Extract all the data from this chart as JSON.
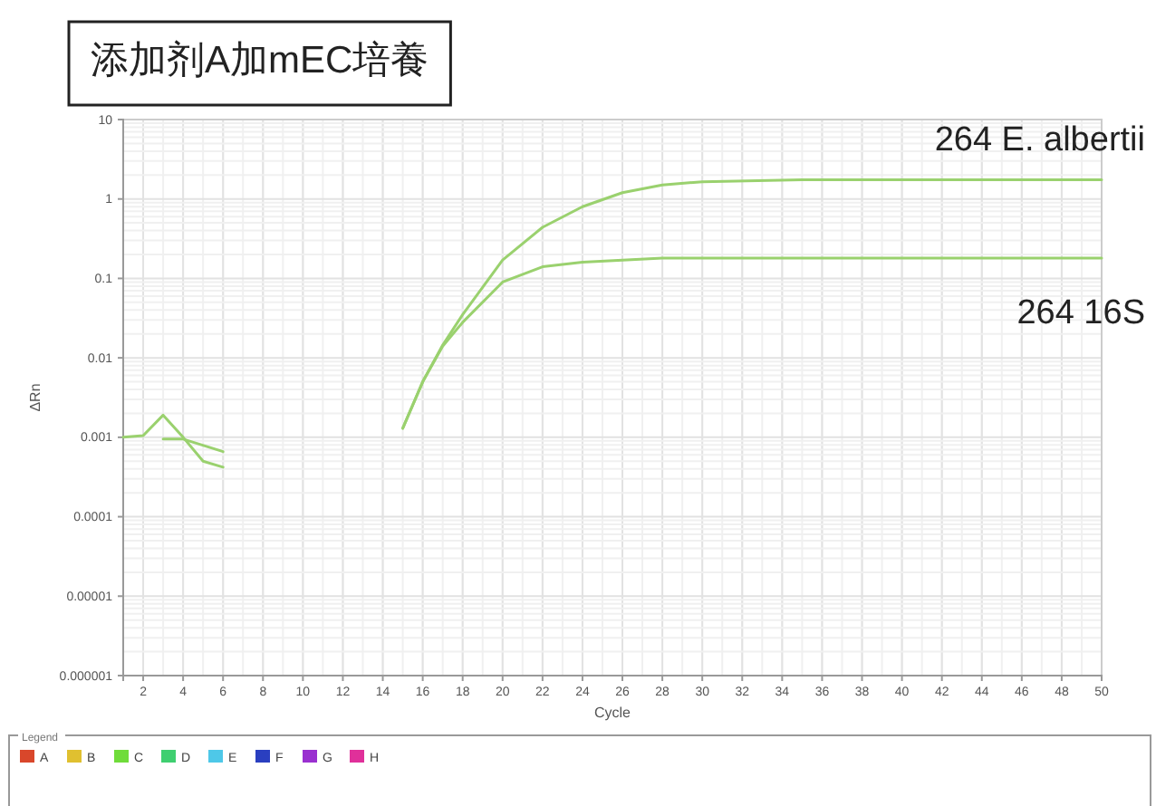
{
  "chart_data": {
    "type": "line",
    "title": "添加剂A加mEC培養",
    "xlabel": "Cycle",
    "ylabel": "ΔRn",
    "legend_title": "Legend",
    "log": "y",
    "grid": true,
    "legend": "bottom",
    "line_style": "solid",
    "marker": "none",
    "xlim": [
      1,
      50
    ],
    "xticks": [
      2,
      4,
      6,
      8,
      10,
      12,
      14,
      16,
      18,
      20,
      22,
      24,
      26,
      28,
      30,
      32,
      34,
      36,
      38,
      40,
      42,
      44,
      46,
      48,
      50
    ],
    "ylim": [
      1e-06,
      10
    ],
    "yticks": [
      {
        "value": 1e-06,
        "label": "0.000001"
      },
      {
        "value": 1e-05,
        "label": "0.00001"
      },
      0.0001,
      0.001,
      0.01,
      0.1,
      1,
      10
    ],
    "series": [
      {
        "name": "264 E. albertii",
        "color": "#9ad16e",
        "x": [
          15,
          16,
          17,
          18,
          20,
          22,
          24,
          26,
          28,
          30,
          35,
          40,
          45,
          50
        ],
        "values": [
          0.0013,
          0.005,
          0.0145,
          0.035,
          0.17,
          0.44,
          0.8,
          1.2,
          1.5,
          1.65,
          1.75,
          1.75,
          1.75,
          1.75
        ]
      },
      {
        "name": "264 16S",
        "color": "#9ad16e",
        "x": [
          15,
          16,
          17,
          18,
          20,
          22,
          24,
          26,
          28,
          30,
          35,
          40,
          45,
          50
        ],
        "values": [
          0.0013,
          0.005,
          0.014,
          0.028,
          0.09,
          0.14,
          0.16,
          0.17,
          0.18,
          0.18,
          0.18,
          0.18,
          0.18,
          0.18
        ]
      },
      {
        "color": "#9ad16e",
        "x": [
          1,
          2,
          3,
          4,
          5,
          6
        ],
        "values": [
          0.001,
          0.00105,
          0.0019,
          0.001,
          0.0005,
          0.00042
        ]
      },
      {
        "color": "#9ad16e",
        "x": [
          3,
          4,
          6
        ],
        "values": [
          0.00095,
          0.00095,
          0.00066
        ]
      },
      {
        "name": "A",
        "color": "#d9472b"
      },
      {
        "name": "B",
        "color": "#e0c030"
      },
      {
        "name": "C",
        "color": "#6fdc3a"
      },
      {
        "name": "D",
        "color": "#3fcf70"
      },
      {
        "name": "E",
        "color": "#4ec8e8"
      },
      {
        "name": "F",
        "color": "#2a3fc0"
      },
      {
        "name": "G",
        "color": "#9a30d0"
      },
      {
        "name": "H",
        "color": "#e0309a"
      }
    ]
  }
}
